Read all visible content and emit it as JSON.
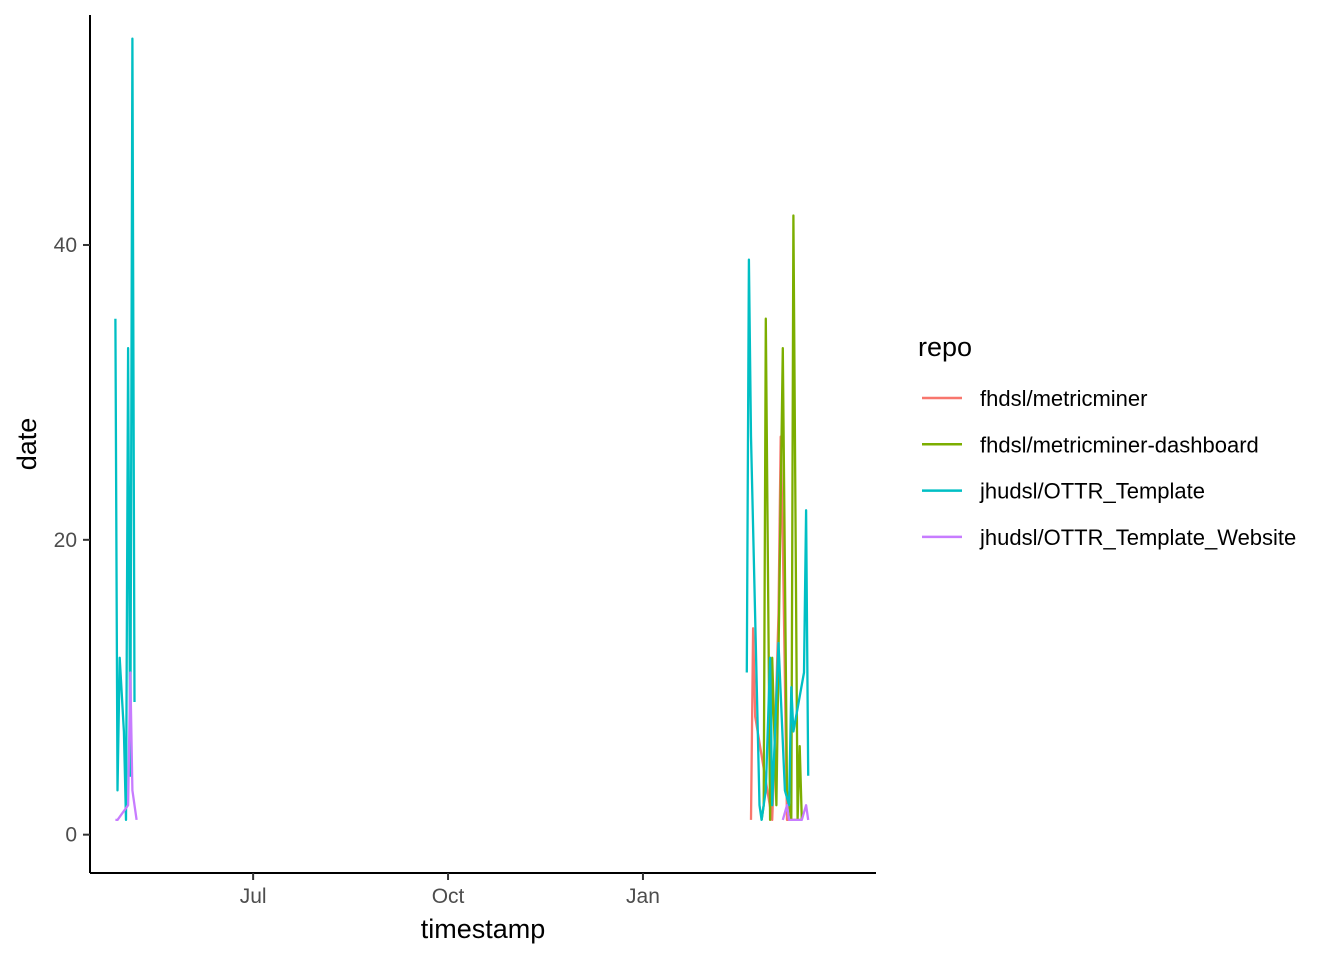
{
  "chart_data": {
    "type": "line",
    "xlabel": "timestamp",
    "ylabel": "date",
    "x_type": "date",
    "xlim": [
      "2023-04-15",
      "2024-04-20"
    ],
    "ylim": [
      -2.6,
      55.6
    ],
    "x_ticks": [
      {
        "value": "2023-07-01",
        "label": "Jul"
      },
      {
        "value": "2023-10-01",
        "label": "Oct"
      },
      {
        "value": "2024-01-01",
        "label": "Jan"
      }
    ],
    "y_ticks": [
      0,
      20,
      40
    ],
    "grid": false,
    "legend": {
      "title": "repo",
      "position": "right"
    },
    "series": [
      {
        "name": "fhdsl/metricminer",
        "color": "#F8766D",
        "points": [
          [
            "2024-02-21",
            1
          ],
          [
            "2024-02-22",
            14
          ],
          [
            "2024-02-23",
            8
          ],
          [
            "2024-03-02",
            1
          ],
          [
            "2024-03-03",
            5
          ],
          [
            "2024-03-05",
            15
          ],
          [
            "2024-03-06",
            27
          ],
          [
            "2024-03-07",
            20
          ],
          [
            "2024-03-09",
            1
          ],
          [
            "2024-03-12",
            1
          ],
          [
            "2024-03-14",
            1
          ],
          [
            "2024-03-16",
            1
          ]
        ]
      },
      {
        "name": "fhdsl/metricminer-dashboard",
        "color": "#7CAE00",
        "points": [
          [
            "2024-02-26",
            1
          ],
          [
            "2024-02-27",
            2
          ],
          [
            "2024-02-28",
            35
          ],
          [
            "2024-03-01",
            1
          ],
          [
            "2024-03-02",
            12
          ],
          [
            "2024-03-04",
            2
          ],
          [
            "2024-03-07",
            33
          ],
          [
            "2024-03-09",
            3
          ],
          [
            "2024-03-11",
            1
          ],
          [
            "2024-03-12",
            42
          ],
          [
            "2024-03-14",
            1
          ],
          [
            "2024-03-15",
            6
          ],
          [
            "2024-03-16",
            1
          ]
        ]
      },
      {
        "name": "jhudsl/OTTR_Template",
        "color": "#00BFC4",
        "points": [
          [
            "2023-04-27",
            35
          ],
          [
            "2023-04-28",
            3
          ],
          [
            "2023-04-29",
            12
          ],
          [
            "2023-05-01",
            7
          ],
          [
            "2023-05-02",
            1
          ],
          [
            "2023-05-03",
            33
          ],
          [
            "2023-05-04",
            4
          ],
          [
            "2023-05-05",
            54
          ],
          [
            "2023-05-06",
            9
          ],
          [
            "2024-02-19",
            11
          ],
          [
            "2024-02-20",
            39
          ],
          [
            "2024-02-21",
            27
          ],
          [
            "2024-02-25",
            2
          ],
          [
            "2024-02-26",
            1
          ],
          [
            "2024-02-28",
            3
          ],
          [
            "2024-03-01",
            12
          ],
          [
            "2024-03-02",
            2
          ],
          [
            "2024-03-05",
            13
          ],
          [
            "2024-03-08",
            3
          ],
          [
            "2024-03-10",
            2
          ],
          [
            "2024-03-11",
            10
          ],
          [
            "2024-03-12",
            7
          ],
          [
            "2024-03-17",
            11
          ],
          [
            "2024-03-18",
            22
          ],
          [
            "2024-03-19",
            4
          ]
        ]
      },
      {
        "name": "jhudsl/OTTR_Template_Website",
        "color": "#C77CFF",
        "points": [
          [
            "2023-04-27",
            1
          ],
          [
            "2023-04-28",
            1
          ],
          [
            "2023-05-03",
            2
          ],
          [
            "2023-05-04",
            11
          ],
          [
            "2023-05-05",
            3
          ],
          [
            "2023-05-07",
            1
          ],
          [
            "2024-03-07",
            1
          ],
          [
            "2024-03-09",
            2
          ],
          [
            "2024-03-10",
            1
          ],
          [
            "2024-03-13",
            1
          ],
          [
            "2024-03-16",
            1
          ],
          [
            "2024-03-18",
            2
          ],
          [
            "2024-03-19",
            1
          ]
        ]
      }
    ]
  }
}
